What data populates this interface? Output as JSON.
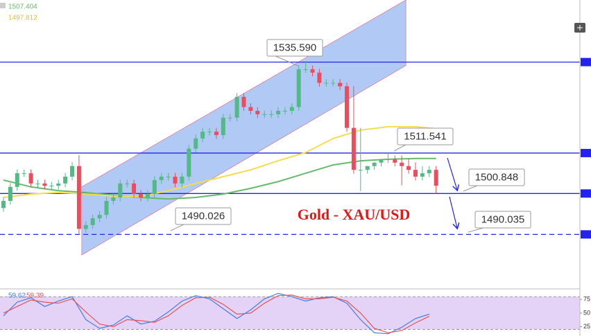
{
  "chart_data": {
    "type": "candlestick",
    "title": "Gold - XAU/USD",
    "ylim": [
      1476,
      1552
    ],
    "candles": {
      "open": [
        1497.0,
        1498.9,
        1502.6,
        1506.2,
        1506.2,
        1503.5,
        1503.5,
        1502.9,
        1502.9,
        1503.5,
        1505.3,
        1508.1,
        1491.5,
        1492.5,
        1494.3,
        1495.2,
        1498.9,
        1499.8,
        1503.5,
        1503.5,
        1500.7,
        1499.8,
        1500.7,
        1504.4,
        1505.3,
        1505.3,
        1503.5,
        1505.3,
        1512.7,
        1515.4,
        1517.2,
        1517.2,
        1516.3,
        1520.9,
        1520.9,
        1526.4,
        1523.7,
        1522.7,
        1521.8,
        1521.8,
        1521.8,
        1522.7,
        1522.7,
        1523.7,
        1533.7,
        1533.7,
        1532.8,
        1530.1,
        1530.1,
        1530.1,
        1529.2,
        1518.2,
        1507.1,
        1507.1,
        1508.1,
        1509.0,
        1509.9,
        1509.9,
        1509.0,
        1508.1,
        1507.1,
        1505.3,
        1506.2,
        1507.1
      ],
      "high": [
        1499.9,
        1503.6,
        1507.2,
        1507.2,
        1507.2,
        1504.5,
        1504.5,
        1503.9,
        1504.5,
        1506.3,
        1509.1,
        1511.0,
        1493.5,
        1495.3,
        1496.2,
        1499.9,
        1500.8,
        1504.5,
        1504.5,
        1504.5,
        1501.7,
        1501.7,
        1505.4,
        1506.3,
        1506.3,
        1506.3,
        1506.3,
        1513.7,
        1516.4,
        1518.2,
        1518.2,
        1518.2,
        1521.9,
        1521.9,
        1527.4,
        1527.4,
        1524.7,
        1523.7,
        1522.8,
        1522.8,
        1523.7,
        1523.7,
        1524.7,
        1534.7,
        1535.59,
        1534.7,
        1533.8,
        1531.1,
        1531.1,
        1531.1,
        1530.2,
        1529.2,
        1518.2,
        1508.1,
        1509.1,
        1510.0,
        1511.541,
        1510.9,
        1510.9,
        1510.0,
        1509.1,
        1508.1,
        1508.1,
        1508.1
      ],
      "low": [
        1496.0,
        1497.9,
        1501.6,
        1505.2,
        1502.5,
        1502.5,
        1501.9,
        1501.9,
        1501.9,
        1502.5,
        1504.3,
        1490.026,
        1490.5,
        1491.5,
        1493.3,
        1494.2,
        1497.9,
        1498.8,
        1502.5,
        1499.7,
        1498.8,
        1498.8,
        1499.7,
        1503.4,
        1504.3,
        1502.5,
        1502.5,
        1504.3,
        1511.7,
        1514.4,
        1516.2,
        1515.3,
        1515.3,
        1519.9,
        1519.9,
        1522.7,
        1521.7,
        1520.8,
        1520.8,
        1520.8,
        1520.8,
        1521.7,
        1521.7,
        1522.7,
        1532.7,
        1531.8,
        1529.1,
        1529.1,
        1529.1,
        1528.2,
        1517.2,
        1506.1,
        1501.5,
        1506.1,
        1507.1,
        1508.0,
        1508.9,
        1508.0,
        1503.0,
        1506.1,
        1504.3,
        1504.3,
        1505.2,
        1500.848
      ],
      "close": [
        1498.9,
        1502.6,
        1506.2,
        1506.2,
        1503.5,
        1503.5,
        1502.9,
        1502.9,
        1503.5,
        1505.3,
        1508.1,
        1491.5,
        1492.5,
        1494.3,
        1495.2,
        1498.9,
        1499.8,
        1503.5,
        1503.5,
        1500.7,
        1499.8,
        1500.7,
        1504.4,
        1505.3,
        1505.3,
        1503.5,
        1505.3,
        1512.7,
        1515.4,
        1517.2,
        1517.2,
        1516.3,
        1520.9,
        1520.9,
        1526.4,
        1523.7,
        1522.7,
        1521.8,
        1521.8,
        1521.8,
        1522.7,
        1522.7,
        1523.7,
        1533.7,
        1533.7,
        1532.8,
        1530.1,
        1530.1,
        1530.1,
        1529.2,
        1518.2,
        1507.1,
        1507.1,
        1508.1,
        1509.0,
        1509.9,
        1509.9,
        1509.0,
        1508.1,
        1507.1,
        1505.3,
        1506.2,
        1507.1,
        1502.9
      ],
      "up_color": "#53b987",
      "down_color": "#eb4d5c"
    },
    "moving_averages": [
      {
        "color": "#66bb6a",
        "legend_value": 1507.404,
        "x": [
          0,
          4,
          8,
          12,
          16,
          20,
          24,
          28,
          32,
          36,
          40,
          44,
          48,
          52,
          56,
          60,
          63
        ],
        "values": [
          1504.4,
          1502.6,
          1501.6,
          1501.1,
          1500.4,
          1499.8,
          1499.4,
          1499.8,
          1500.7,
          1502.2,
          1504.0,
          1506.2,
          1508.4,
          1509.5,
          1509.9,
          1510.1,
          1510.1
        ]
      },
      {
        "color": "#f3de4a",
        "legend_value": 1497.812,
        "x": [
          0,
          4,
          8,
          12,
          16,
          20,
          24,
          28,
          32,
          36,
          40,
          44,
          48,
          52,
          56,
          60,
          63
        ],
        "values": [
          1499.8,
          1500.7,
          1501.1,
          1500.7,
          1500.2,
          1500.0,
          1501.6,
          1503.5,
          1505.3,
          1507.1,
          1509.5,
          1511.7,
          1515.4,
          1517.6,
          1518.5,
          1518.5,
          1518.0
        ]
      }
    ],
    "channel": {
      "x": [
        11.4,
        58.6
      ],
      "upper": [
        1502.6,
        1552.0
      ],
      "lower": [
        1484.6,
        1534.7
      ],
      "color": "#9dbcf3"
    },
    "callouts": [
      {
        "value": 1535.59,
        "label": "1535.590",
        "level": "solid"
      },
      {
        "value": 1511.541,
        "label": "1511.541",
        "level": "solid"
      },
      {
        "value": 1500.848,
        "label": "1500.848",
        "level": "solid"
      },
      {
        "value": 1490.026,
        "label": "1490.026",
        "level": "none"
      },
      {
        "value": 1490.035,
        "label": "1490.035",
        "level": "dashed"
      }
    ],
    "level_color": "#2323f0",
    "oscillator": {
      "ylim": [
        8,
        93
      ],
      "yticks": [
        75,
        50,
        25
      ],
      "band": [
        20,
        80
      ],
      "band_color": "#e5d2f7",
      "x": [
        0,
        2,
        4,
        6,
        8,
        10,
        12,
        14,
        16,
        18,
        20,
        22,
        24,
        26,
        28,
        30,
        32,
        34,
        36,
        38,
        40,
        42,
        44,
        46,
        48,
        50,
        52,
        54,
        56,
        58,
        60,
        62
      ],
      "series": [
        {
          "color": "#3f7ee8",
          "legend_value": 59.62,
          "values": [
            45,
            70,
            78,
            62,
            72,
            80,
            38,
            22,
            28,
            45,
            30,
            35,
            52,
            72,
            82,
            76,
            58,
            40,
            56,
            76,
            86,
            80,
            72,
            78,
            80,
            68,
            38,
            14,
            12,
            24,
            40,
            48
          ]
        },
        {
          "color": "#e55353",
          "legend_value": 59.39,
          "values": [
            50,
            62,
            74,
            70,
            68,
            76,
            52,
            30,
            25,
            38,
            36,
            33,
            45,
            64,
            78,
            79,
            66,
            48,
            50,
            68,
            82,
            83,
            76,
            76,
            79,
            72,
            50,
            22,
            14,
            18,
            32,
            44
          ]
        }
      ]
    }
  }
}
